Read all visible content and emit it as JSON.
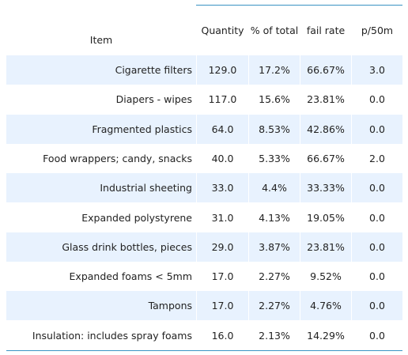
{
  "chart_data": {
    "type": "table",
    "columns": [
      "Item",
      "Quantity",
      "% of total",
      "fail rate",
      "p/50m"
    ],
    "rows": [
      [
        "Cigarette filters",
        "129.0",
        "17.2%",
        "66.67%",
        "3.0"
      ],
      [
        "Diapers - wipes",
        "117.0",
        "15.6%",
        "23.81%",
        "0.0"
      ],
      [
        "Fragmented plastics",
        "64.0",
        "8.53%",
        "42.86%",
        "0.0"
      ],
      [
        "Food wrappers; candy, snacks",
        "40.0",
        "5.33%",
        "66.67%",
        "2.0"
      ],
      [
        "Industrial sheeting",
        "33.0",
        "4.4%",
        "33.33%",
        "0.0"
      ],
      [
        "Expanded polystyrene",
        "31.0",
        "4.13%",
        "19.05%",
        "0.0"
      ],
      [
        "Glass drink bottles, pieces",
        "29.0",
        "3.87%",
        "23.81%",
        "0.0"
      ],
      [
        "Expanded foams < 5mm",
        "17.0",
        "2.27%",
        "9.52%",
        "0.0"
      ],
      [
        "Tampons",
        "17.0",
        "2.27%",
        "4.76%",
        "0.0"
      ],
      [
        "Insulation: includes spray foams",
        "16.0",
        "2.13%",
        "14.29%",
        "0.0"
      ]
    ],
    "colors": {
      "stripe": "#e8f2fe",
      "rule": "#3a93c3",
      "text": "#222222"
    }
  }
}
